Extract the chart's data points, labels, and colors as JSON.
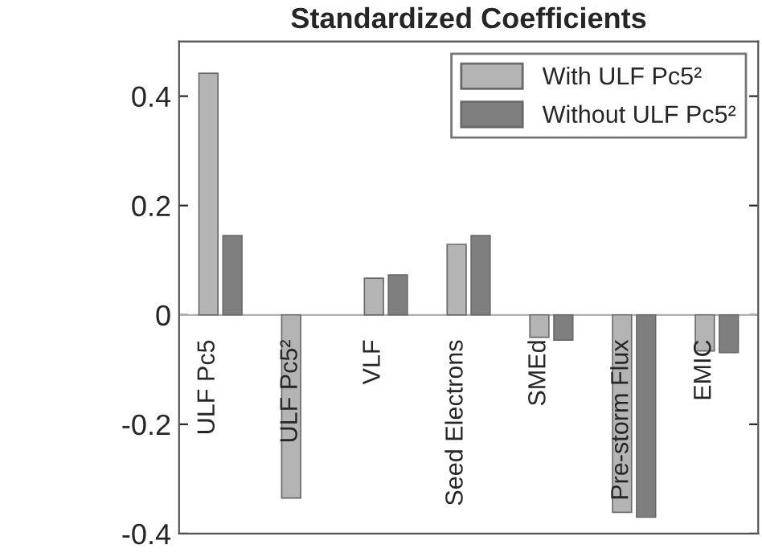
{
  "chart_data": {
    "type": "bar",
    "title": "Standardized Coefficients",
    "categories": [
      "ULF Pc5",
      "ULF Pc5²",
      "VLF",
      "Seed Electrons",
      "SMEd",
      "Pre-storm Flux",
      "EMIC"
    ],
    "series": [
      {
        "name": "With ULF Pc5²",
        "color": "#b4b4b4",
        "values": [
          0.442,
          -0.335,
          0.067,
          0.129,
          -0.041,
          -0.361,
          -0.066
        ]
      },
      {
        "name": "Without ULF Pc5²",
        "color": "#7f7f7f",
        "values": [
          0.145,
          null,
          0.073,
          0.145,
          -0.046,
          -0.37,
          -0.069
        ]
      }
    ],
    "ylim": [
      -0.4,
      0.5
    ],
    "yticks": [
      -0.4,
      -0.2,
      0,
      0.2,
      0.4
    ],
    "tick_labels": "y",
    "grid": false,
    "legend": "top right"
  }
}
